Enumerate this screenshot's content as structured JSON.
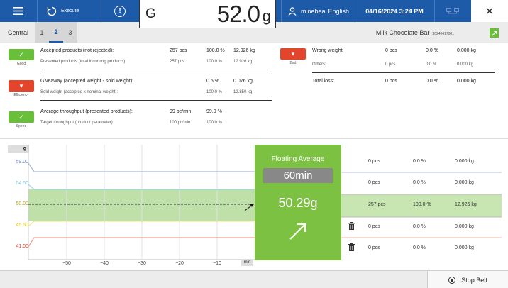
{
  "topbar": {
    "execute_label": "Execute",
    "user_name": "minebea",
    "language": "English",
    "datetime": "04/16/2024 3:24 PM",
    "close_glyph": "✕"
  },
  "weight_display": {
    "mode": "G",
    "value": "52.0",
    "unit": "g"
  },
  "tabs_row": {
    "central_label": "Central",
    "tabs": [
      "1",
      "2",
      "3"
    ],
    "active_tab": "2",
    "product_name": "Milk Chocolate Bar",
    "product_code": "20240417001"
  },
  "indicators": {
    "good": "Good",
    "efficiency": "Efficiency",
    "speed": "Speed",
    "bad": "Bad"
  },
  "stats": {
    "accepted": {
      "label": "Accepted products (not rejected):",
      "count": "257 pcs",
      "pct": "100.0 %",
      "kg": "12.926 kg"
    },
    "presented": {
      "label": "Presented products (total incoming products):",
      "count": "257 pcs",
      "pct": "100.0 %",
      "kg": "12.926 kg"
    },
    "giveaway": {
      "label": "Giveaway (accepted weight - sold weight):",
      "pct": "0.5 %",
      "kg": "0.076 kg"
    },
    "sold": {
      "label": "Sold weight (accepted x nominal weight):",
      "pct": "100.0 %",
      "kg": "12.850 kg"
    },
    "avg_throughput": {
      "label": "Average throughput (presented products):",
      "rate": "99 pc/min",
      "pct": "99.0 %"
    },
    "target_throughput": {
      "label": "Target throughput (product parameter):",
      "rate": "100 pc/min",
      "pct": "100.0 %"
    },
    "wrong_weight": {
      "label": "Wrong weight:",
      "count": "0 pcs",
      "pct": "0.0 %",
      "kg": "0.000 kg"
    },
    "others": {
      "label": "Others:",
      "count": "0 pcs",
      "pct": "0.0 %",
      "kg": "0.000 kg"
    },
    "total_loss": {
      "label": "Total loss:",
      "count": "0 pcs",
      "pct": "0.0 %",
      "kg": "0.000 kg"
    }
  },
  "chart": {
    "unit_label": "g",
    "y_ticks": [
      "59.00",
      "54.50",
      "50.00",
      "45.50",
      "41.00"
    ],
    "y_tick_colors": [
      "#6d7fc4",
      "#7ac6d6",
      "#c8b41a",
      "#e8d42a",
      "#e2442c"
    ],
    "x_ticks": [
      "−50",
      "−40",
      "−30",
      "−20",
      "−10"
    ],
    "x_unit": "min",
    "floating_average": {
      "title": "Floating Average",
      "window": "60min",
      "value": "50.29g"
    },
    "zone_rows": [
      {
        "count": "0 pcs",
        "pct": "0.0 %",
        "kg": "0.000 kg"
      },
      {
        "count": "0 pcs",
        "pct": "0.0 %",
        "kg": "0.000 kg"
      },
      {
        "count": "257 pcs",
        "pct": "100.0 %",
        "kg": "12.926 kg"
      },
      {
        "count": "0 pcs",
        "pct": "0.0 %",
        "kg": "0.000 kg"
      },
      {
        "count": "0 pcs",
        "pct": "0.0 %",
        "kg": "0.000 kg"
      }
    ]
  },
  "bottom": {
    "stop_belt_label": "Stop Belt"
  }
}
